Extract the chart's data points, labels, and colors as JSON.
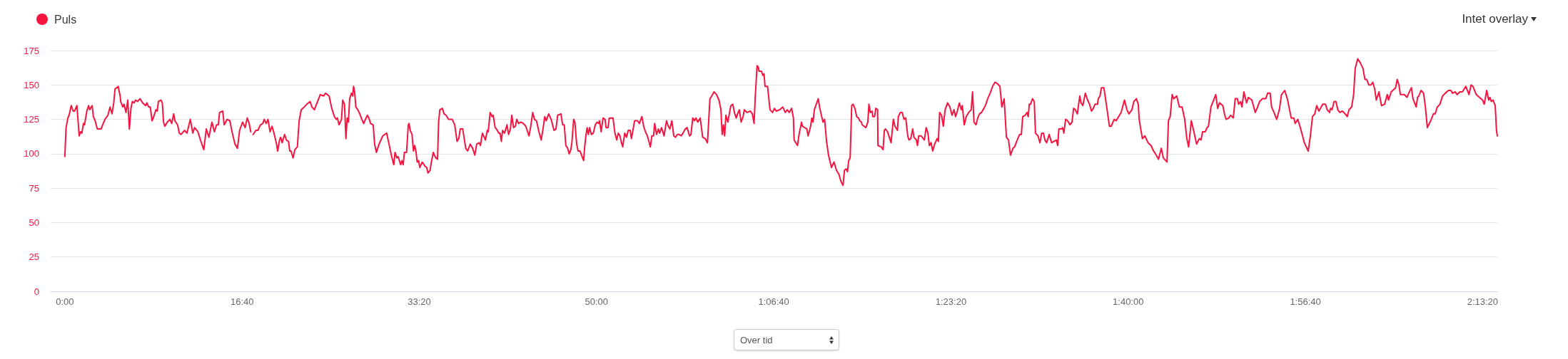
{
  "chart_data": {
    "type": "line",
    "x": [
      0,
      7,
      17,
      24,
      36,
      47,
      55,
      68,
      81,
      89,
      96,
      105,
      111,
      124,
      134,
      140,
      154,
      161,
      171,
      183,
      204,
      226,
      243,
      255,
      266,
      276,
      283,
      301,
      312,
      315,
      327,
      334,
      345,
      355,
      364,
      373,
      381,
      390,
      399,
      410,
      424,
      439,
      456,
      463,
      473,
      482,
      492,
      499,
      514,
      521,
      528,
      542,
      550,
      557,
      564,
      578,
      593,
      603,
      614,
      621,
      636,
      646,
      655,
      676,
      689,
      708,
      722,
      732,
      751,
      765,
      784,
      798,
      813,
      830,
      844,
      856,
      866,
      873,
      891,
      899,
      916,
      931,
      945,
      960,
      974,
      986,
      1003,
      1017,
      1029,
      1040,
      1049,
      1056,
      1063,
      1078,
      1089,
      1104,
      1117,
      1125,
      1136,
      1146,
      1158,
      1169,
      1180,
      1193,
      1201,
      1211,
      1218,
      1226,
      1240,
      1250,
      1262,
      1269,
      1276,
      1288,
      1298,
      1312,
      1322,
      1334,
      1351,
      1365,
      1384,
      1394,
      1408,
      1420,
      1441,
      1460,
      1471,
      1491,
      1506,
      1521,
      1532,
      1538,
      1547,
      1561,
      1568,
      1578,
      1586,
      1593,
      1600,
      1607,
      1617,
      1624,
      1629,
      1635,
      1642,
      1653,
      1664,
      1676,
      1686,
      1696,
      1708,
      1718,
      1725,
      1740,
      1748,
      1758,
      1773,
      1794,
      1816,
      1834,
      1844,
      1856,
      1863,
      1873,
      1880,
      1895,
      1902,
      1909,
      1916,
      1928,
      1938,
      1942,
      1949,
      1959,
      1967,
      1974,
      1981,
      1988,
      1996,
      2003,
      2017,
      2032,
      2042,
      2049,
      2061,
      2068,
      2079,
      2085,
      2093,
      2103,
      2109,
      2116,
      2130,
      2140,
      2151,
      2165,
      2186,
      2200,
      2213,
      2223,
      2231,
      2245,
      2262,
      2273,
      2287,
      2301,
      2313,
      2324,
      2338,
      2345,
      2356,
      2373,
      2384,
      2389,
      2400,
      2411,
      2417,
      2428,
      2435,
      2449,
      2456,
      2463,
      2470,
      2481,
      2495,
      2504,
      2514,
      2522,
      2532,
      2542,
      2550,
      2560,
      2573,
      2587,
      2601,
      2619,
      2629,
      2640,
      2650,
      2661,
      2677,
      2688,
      2698,
      2708,
      2716,
      2730,
      2744,
      2760,
      2771,
      2781,
      2799,
      2809,
      2818,
      2827,
      2837,
      2846,
      2855,
      2861,
      2871,
      2878,
      2888,
      2896,
      2906,
      2913,
      2927,
      2934,
      2940,
      2947,
      2954,
      2961,
      2971,
      2982,
      2993,
      3003,
      3012,
      3017,
      3026,
      3037,
      3048,
      3054,
      3065,
      3072,
      3093,
      3104,
      3114,
      3123,
      3132,
      3141,
      3148,
      3159,
      3169,
      3179,
      3190,
      3197,
      3215,
      3231,
      3242,
      3256,
      3266,
      3276,
      3287,
      3304,
      3312,
      3322,
      3328,
      3339,
      3349,
      3356,
      3367,
      3381,
      3395,
      3405,
      3414,
      3425,
      3436,
      3446,
      3456,
      3467,
      3478,
      3488,
      3501,
      3511,
      3525,
      3533,
      3543,
      3553,
      3561,
      3571,
      3585,
      3599,
      3613,
      3626,
      3640,
      3650,
      3663,
      3677,
      3691,
      3702,
      3709,
      3716,
      3723,
      3730,
      3741,
      3758,
      3769,
      3778,
      3788,
      3799,
      3806,
      3816,
      3827,
      3834,
      3848,
      3868,
      3879,
      3889,
      3896,
      3906,
      3913,
      3917,
      3931,
      3938,
      3945,
      3951,
      3965,
      3979,
      3993,
      4004,
      4014,
      4034,
      4051,
      4065,
      4076,
      4087,
      4101,
      4111,
      4115,
      4129,
      4134,
      4143,
      4157,
      4162,
      4187,
      4194,
      4208,
      4215,
      4222,
      4229,
      4251,
      4260,
      4278,
      4287,
      4298,
      4309,
      4326,
      4340,
      4354,
      4368,
      4379,
      4391,
      4399,
      4409,
      4416,
      4423,
      4431,
      4440,
      4448,
      4458,
      4468,
      4478,
      4485,
      4495,
      4499,
      4520,
      4531,
      4537,
      4545,
      4555,
      4559,
      4569,
      4576,
      4586,
      4588,
      4606,
      4617,
      4624,
      4631,
      4642,
      4652,
      4662,
      4675,
      4684,
      4698,
      4703,
      4714,
      4725,
      4735,
      4745,
      4756,
      4763,
      4773,
      4784,
      4791,
      4805,
      4811,
      4818,
      4832,
      4850,
      4860,
      4870,
      4878,
      4888,
      4897,
      4908,
      4922,
      4929,
      4936,
      4947,
      4957,
      4967,
      4981,
      4994,
      5006,
      5017,
      5026,
      5036,
      5047,
      5058,
      5064,
      5075,
      5086,
      5100,
      5114,
      5122,
      5130,
      5141,
      5151,
      5161,
      5172,
      5186,
      5197,
      5207,
      5221,
      5235,
      5248,
      5262,
      5276,
      5283,
      5287,
      5300,
      5313,
      5325,
      5336,
      5350,
      5359,
      5377,
      5387,
      5397,
      5405,
      5419,
      5429,
      5436,
      5442,
      5449,
      5460,
      5470,
      5477,
      5491,
      5502,
      5512,
      5522,
      5530,
      5540,
      5554,
      5568,
      5581,
      5595,
      5602,
      5609,
      5623,
      5630,
      5637,
      5647,
      5658,
      5672,
      5683,
      5692,
      5702,
      5713,
      5727,
      5734,
      5744,
      5758,
      5771,
      5782,
      5793,
      5803,
      5813,
      5827,
      5831,
      5841,
      5849,
      5863,
      5880,
      5894,
      5904,
      5921,
      5932,
      5946,
      5960,
      5979,
      5993,
      6004,
      6021,
      6032,
      6046,
      6057,
      6062,
      6080,
      6094,
      6112,
      6129,
      6143,
      6154,
      6171,
      6187,
      6198,
      6205,
      6219,
      6227,
      6237,
      6248,
      6257,
      6274,
      6289,
      6304,
      6319,
      6331,
      6341,
      6349,
      6356,
      6371,
      6386,
      6401,
      6411,
      6420,
      6435,
      6445,
      6453,
      6467,
      6482,
      6494,
      6505,
      6515,
      6534,
      6545,
      6553,
      6568,
      6578,
      6593,
      6604,
      6616,
      6623,
      6634,
      6642,
      6653,
      6668,
      6678,
      6698,
      6717,
      6727,
      6742,
      6757,
      6776,
      6787,
      6801,
      6809,
      6823,
      6838,
      6853,
      6865,
      6883,
      6898,
      6909,
      6920,
      6935,
      6942,
      6957,
      6969,
      6984,
      6994,
      7016,
      7028,
      7040,
      7053,
      7064,
      7076,
      7098,
      7113,
      7123,
      7136,
      7142,
      7150,
      7162,
      7172,
      7183,
      7194,
      7209,
      7224,
      7236,
      7246,
      7261,
      7272,
      7281,
      7295,
      7310,
      7325,
      7336,
      7346,
      7358,
      7370,
      7380,
      7391,
      7400,
      7415,
      7429,
      7447,
      7462,
      7469,
      7484,
      7509,
      7518,
      7528,
      7536,
      7558,
      7573,
      7583,
      7598,
      7607,
      7625,
      7633,
      7640,
      7652,
      7667,
      7677,
      7688,
      7707,
      7722,
      7732,
      7744,
      7759,
      7774,
      7789,
      7807,
      7821,
      7830,
      7845,
      7856,
      7871,
      7886,
      7905,
      7923,
      7935,
      7945,
      7964,
      7982,
      8000,
      8009,
      8023,
      8034,
      8041,
      8049,
      8059,
      8071,
      8078,
      8083
    ],
    "series": [
      {
        "name": "Puls",
        "color": "#f5143f",
        "values": [
          98,
          119,
          126,
          128,
          135,
          131,
          131,
          135,
          113,
          116,
          115,
          122,
          121,
          131,
          135,
          132,
          135,
          127,
          124,
          118,
          118,
          125,
          128,
          134,
          129,
          137,
          147,
          149,
          142,
          138,
          134,
          136,
          130,
          139,
          118,
          133,
          138,
          137,
          139,
          138,
          140,
          137,
          135,
          137,
          134,
          134,
          124,
          126,
          132,
          131,
          138,
          139,
          137,
          123,
          120,
          123,
          125,
          122,
          129,
          124,
          121,
          115,
          114,
          117,
          115,
          125,
          115,
          119,
          116,
          110,
          103,
          118,
          112,
          123,
          116,
          121,
          121,
          130,
          131,
          121,
          125,
          124,
          115,
          107,
          104,
          117,
          123,
          119,
          126,
          122,
          116,
          null,
          114,
          117,
          117,
          121,
          122,
          125,
          122,
          125,
          116,
          120,
          115,
          108,
          102,
          110,
          112,
          108,
          114,
          110,
          109,
          102,
          102,
          97,
          103,
          105,
          124,
          132,
          134,
          136,
          138,
          134,
          132,
          136,
          143,
          142,
          144,
          142,
          133,
          127,
          125,
          126,
          121,
          125,
          139,
          136,
          111,
          126,
          123,
          140,
          144,
          142,
          149,
          145,
          134,
          132,
          129,
          125,
          122,
          125,
          128,
          125,
          122,
          121,
          107,
          101,
          107,
          113,
          115,
          104,
          98,
          92,
          101,
          97,
          98,
          92,
          95,
          92,
          101,
          101,
          121,
          122,
          117,
          114,
          102,
          106,
          102,
          94,
          95,
          90,
          94,
          91,
          90,
          86,
          88,
          94,
          101,
          99,
          97,
          96,
          123,
          132,
          133,
          129,
          128,
          125,
          125,
          121,
          109,
          111,
          118,
          118,
          104,
          102,
          107,
          104,
          99,
          107,
          108,
          106,
          115,
          110,
          117,
          116,
          130,
          127,
          128,
          119,
          118,
          115,
          115,
          109,
          117,
          115,
          121,
          114,
          118,
          128,
          119,
          120,
          125,
          122,
          123,
          122,
          120,
          113,
          120,
          130,
          125,
          124,
          115,
          110,
          118,
          127,
          124,
          129,
          125,
          117,
          118,
          128,
          129,
          121,
          121,
          106,
          104,
          100,
          103,
          108,
          125,
          123,
          107,
          102,
          102,
          100,
          95,
          106,
          113,
          119,
          114,
          119,
          114,
          115,
          121,
          123,
          122,
          124,
          116,
          126,
          125,
          119,
          119,
          126,
          126,
          115,
          110,
          115,
          113,
          108,
          105,
          115,
          112,
          117,
          117,
          111,
          124,
          124,
          122,
          127,
          120,
          116,
          113,
          105,
          113,
          113,
          122,
          114,
          118,
          115,
          119,
          113,
          124,
          120,
          118,
          124,
          113,
          112,
          114,
          114,
          113,
          115,
          118,
          119,
          113,
          114,
          126,
          124,
          126,
          123,
          126,
          112,
          111,
          108,
          140,
          142,
          145,
          143,
          139,
          132,
          114,
          121,
          113,
          128,
          123,
          135,
          136,
          130,
          126,
          130,
          132,
          123,
          127,
          132,
          130,
          131,
          129,
          122,
          142,
          164,
          163,
          160,
          160,
          157,
          158,
          149,
          149,
          132,
          130,
          133,
          131,
          132,
          134,
          130,
          132,
          130,
          133,
          126,
          110,
          107,
          106,
          114,
          123,
          120,
          118,
          113,
          120,
          126,
          123,
          132,
          140,
          133,
          123,
          125,
          109,
          99,
          90,
          94,
          88,
          85,
          80,
          77,
          88,
          89,
          87,
          95,
          97,
          135,
          136,
          133,
          127,
          126,
          124,
          123,
          121,
          119,
          123,
          136,
          130,
          131,
          127,
          127,
          133,
          132,
          106,
          105,
          103,
          117,
          118,
          116,
          112,
          108,
          125,
          120,
          117,
          127,
          130,
          130,
          125,
          126,
          113,
          110,
          111,
          118,
          112,
          110,
          106,
          113,
          113,
          110,
          119,
          115,
          106,
          108,
          102,
          107,
          111,
          109,
          130,
          128,
          120,
          132,
          137,
          134,
          128,
          132,
          127,
          131,
          137,
          132,
          135,
          121,
          127,
          130,
          132,
          145,
          123,
          121,
          126,
          129,
          130,
          133,
          136,
          140,
          144,
          149,
          152,
          151,
          149,
          140,
          134,
          140,
          112,
          110,
          99,
          104,
          105,
          111,
          114,
          114,
          127,
          128,
          130,
          127,
          136,
          136,
          140,
          138,
          115,
          113,
          108,
          115,
          115,
          110,
          108,
          114,
          108,
          109,
          110,
          106,
          118,
          118,
          119,
          115,
          125,
          124,
          121,
          123,
          133,
          132,
          129,
          142,
          137,
          135,
          144,
          139,
          136,
          131,
          133,
          136,
          136,
          140,
          142,
          148,
          148,
          133,
          120,
          120,
          125,
          124,
          127,
          130,
          139,
          132,
          129,
          132,
          138,
          140,
          136,
          125,
          111,
          113,
          108,
          106,
          102,
          100,
          96,
          104,
          97,
          96,
          94,
          124,
          127,
          143,
          140,
          142,
          134,
          134,
          125,
          111,
          105,
          115,
          124,
          116,
          107,
          111,
          110,
          116,
          116,
          119,
          120,
          134,
          139,
          143,
          133,
          137,
          135,
          128,
          125,
          126,
          128,
          126,
          140,
          140,
          136,
          138,
          134,
          145,
          137,
          141,
          139,
          130,
          133,
          138,
          140,
          140,
          144,
          144,
          134,
          130,
          125,
          132,
          143,
          146,
          140,
          133,
          126,
          126,
          122,
          125,
          120,
          113,
          108,
          102,
          113,
          127,
          129,
          135,
          131,
          136,
          136,
          132,
          130,
          133,
          132,
          138,
          138,
          132,
          130,
          131,
          129,
          127,
          132,
          134,
          143,
          162,
          169,
          166,
          162,
          154,
          154,
          150,
          150,
          152,
          147,
          139,
          145,
          135,
          136,
          143,
          139,
          145,
          148,
          154,
          150,
          143,
          143,
          141,
          144,
          148,
          140,
          134,
          141,
          142,
          146,
          144,
          134,
          119,
          124,
          129,
          129,
          134,
          136,
          142,
          144,
          146,
          146,
          144,
          145,
          143,
          145,
          145,
          149,
          143,
          150,
          149,
          143,
          141,
          139,
          136,
          146,
          139,
          141,
          138,
          139,
          135,
          117,
          113
        ]
      }
    ],
    "xlim": [
      -80,
      8083
    ],
    "xticks": [
      {
        "value": 0,
        "label": "0:00"
      },
      {
        "value": 1000,
        "label": "16:40"
      },
      {
        "value": 2000,
        "label": "33:20"
      },
      {
        "value": 3000,
        "label": "50:00"
      },
      {
        "value": 4000,
        "label": "1:06:40"
      },
      {
        "value": 5000,
        "label": "1:23:20"
      },
      {
        "value": 6000,
        "label": "1:40:00"
      },
      {
        "value": 7000,
        "label": "1:56:40"
      },
      {
        "value": 8000,
        "label": "2:13:20"
      }
    ],
    "ylim": [
      0,
      175
    ],
    "yticks": [
      0,
      25,
      50,
      75,
      100,
      125,
      150,
      175
    ],
    "grid": "y",
    "legend": "top left",
    "annotations": [
      "Intet overlay",
      "Over tid"
    ]
  }
}
